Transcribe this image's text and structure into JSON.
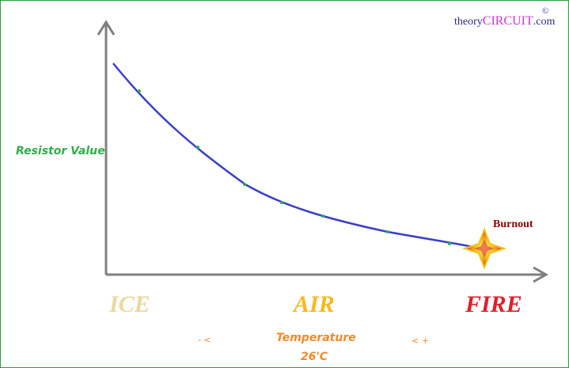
{
  "watermark": {
    "prefix": "theory",
    "brand": "CIRCUIT",
    "suffix": ".com",
    "copyright": "©"
  },
  "axes": {
    "y_label": "Resistor Value",
    "x_label": "Temperature",
    "x_value": "26'C"
  },
  "zones": {
    "cold": "ICE",
    "ambient": "AIR",
    "hot": "FIRE"
  },
  "direction": {
    "minus": "- <",
    "plus": "<  +"
  },
  "annotation": {
    "burnout": "Burnout"
  },
  "colors": {
    "curve": "#3b3fc8",
    "markers": "#2fae4a",
    "axis": "#7f7f7f",
    "ice": "#e8d9a0",
    "air": "#f7b91c",
    "fire": "#e0202a",
    "label_green": "#2fae4a",
    "label_orange": "#f08a2a",
    "burnout": "#8b0000",
    "brand_magenta": "#cc33cc",
    "brand_text": "#2b2b88"
  }
}
